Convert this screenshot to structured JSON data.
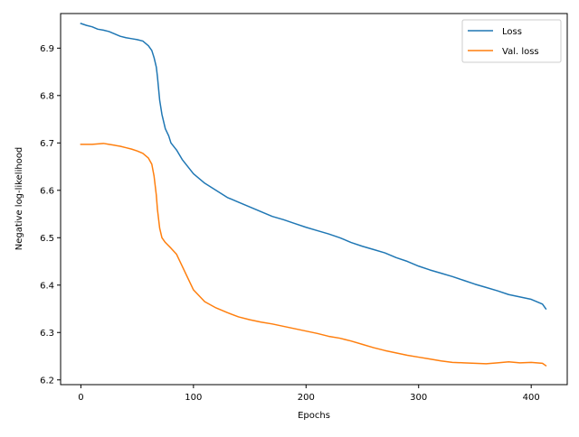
{
  "chart_data": {
    "type": "line",
    "title": "",
    "xlabel": "Epochs",
    "ylabel": "Negative log-likelihood",
    "xlim": [
      -18,
      432
    ],
    "ylim": [
      6.19,
      6.973
    ],
    "x_ticks": [
      0,
      100,
      200,
      300,
      400
    ],
    "x_tick_labels": [
      "0",
      "100",
      "200",
      "300",
      "400"
    ],
    "y_ticks": [
      6.2,
      6.3,
      6.4,
      6.5,
      6.6,
      6.7,
      6.8,
      6.9
    ],
    "y_tick_labels": [
      "6.2",
      "6.3",
      "6.4",
      "6.5",
      "6.6",
      "6.7",
      "6.8",
      "6.9"
    ],
    "grid": false,
    "legend_position": "top-right",
    "series": [
      {
        "name": "Loss",
        "color": "#1f77b4",
        "x": [
          0,
          5,
          10,
          15,
          20,
          25,
          30,
          35,
          40,
          45,
          50,
          55,
          60,
          63,
          65,
          67,
          68,
          70,
          72,
          75,
          78,
          80,
          85,
          90,
          95,
          100,
          110,
          120,
          130,
          140,
          150,
          160,
          170,
          180,
          190,
          200,
          210,
          220,
          230,
          240,
          250,
          260,
          270,
          280,
          290,
          300,
          310,
          320,
          330,
          340,
          350,
          360,
          370,
          380,
          390,
          400,
          405,
          410,
          413
        ],
        "values": [
          6.952,
          6.948,
          6.945,
          6.94,
          6.938,
          6.935,
          6.93,
          6.925,
          6.922,
          6.92,
          6.918,
          6.915,
          6.905,
          6.895,
          6.88,
          6.86,
          6.84,
          6.79,
          6.76,
          6.73,
          6.715,
          6.7,
          6.685,
          6.665,
          6.65,
          6.635,
          6.615,
          6.6,
          6.585,
          6.575,
          6.565,
          6.555,
          6.545,
          6.538,
          6.53,
          6.522,
          6.515,
          6.508,
          6.5,
          6.49,
          6.482,
          6.475,
          6.468,
          6.458,
          6.45,
          6.44,
          6.432,
          6.425,
          6.418,
          6.41,
          6.402,
          6.395,
          6.388,
          6.38,
          6.375,
          6.37,
          6.365,
          6.36,
          6.35
        ]
      },
      {
        "name": "Val. loss",
        "color": "#ff7f0e",
        "x": [
          0,
          5,
          10,
          15,
          20,
          25,
          30,
          35,
          40,
          45,
          50,
          55,
          60,
          63,
          65,
          67,
          68,
          70,
          72,
          75,
          80,
          85,
          90,
          95,
          100,
          110,
          120,
          130,
          140,
          150,
          160,
          170,
          180,
          190,
          200,
          210,
          220,
          230,
          240,
          250,
          260,
          270,
          280,
          290,
          300,
          310,
          320,
          330,
          340,
          350,
          360,
          370,
          380,
          390,
          400,
          405,
          410,
          413
        ],
        "values": [
          6.697,
          6.697,
          6.697,
          6.698,
          6.699,
          6.697,
          6.695,
          6.693,
          6.69,
          6.687,
          6.683,
          6.678,
          6.668,
          6.655,
          6.63,
          6.59,
          6.56,
          6.52,
          6.5,
          6.49,
          6.478,
          6.465,
          6.44,
          6.415,
          6.39,
          6.365,
          6.352,
          6.342,
          6.333,
          6.327,
          6.322,
          6.318,
          6.313,
          6.308,
          6.303,
          6.298,
          6.292,
          6.288,
          6.282,
          6.275,
          6.268,
          6.262,
          6.257,
          6.252,
          6.248,
          6.244,
          6.24,
          6.237,
          6.236,
          6.235,
          6.234,
          6.236,
          6.238,
          6.236,
          6.237,
          6.236,
          6.235,
          6.23
        ]
      }
    ]
  }
}
